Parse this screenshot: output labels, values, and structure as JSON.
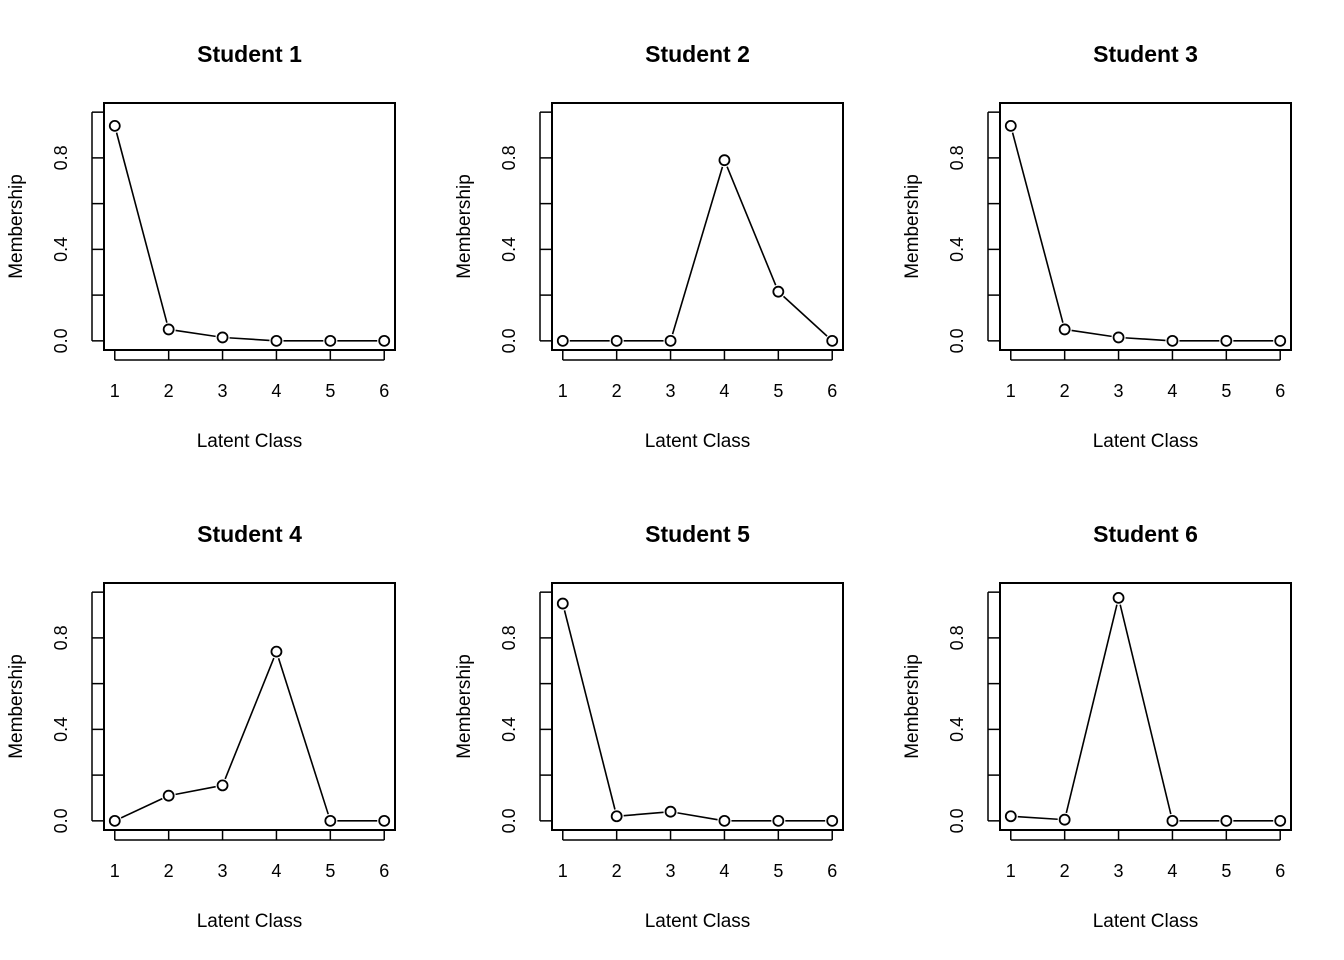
{
  "chart_data": [
    {
      "type": "line",
      "title": "Student 1",
      "xlabel": "Latent Class",
      "ylabel": "Membership",
      "x": [
        1,
        2,
        3,
        4,
        5,
        6
      ],
      "y": [
        0.94,
        0.05,
        0.015,
        0.0,
        0.0,
        0.0
      ],
      "xticks": [
        "1",
        "2",
        "3",
        "4",
        "5",
        "6"
      ],
      "yticks": [
        "0.0",
        "0.4",
        "0.8"
      ],
      "ylim": [
        -0.04,
        1.04
      ]
    },
    {
      "type": "line",
      "title": "Student 2",
      "xlabel": "Latent Class",
      "ylabel": "Membership",
      "x": [
        1,
        2,
        3,
        4,
        5,
        6
      ],
      "y": [
        0.0,
        0.0,
        0.0,
        0.79,
        0.215,
        0.0
      ],
      "xticks": [
        "1",
        "2",
        "3",
        "4",
        "5",
        "6"
      ],
      "yticks": [
        "0.0",
        "0.4",
        "0.8"
      ],
      "ylim": [
        -0.04,
        1.04
      ]
    },
    {
      "type": "line",
      "title": "Student 3",
      "xlabel": "Latent Class",
      "ylabel": "Membership",
      "x": [
        1,
        2,
        3,
        4,
        5,
        6
      ],
      "y": [
        0.94,
        0.05,
        0.015,
        0.0,
        0.0,
        0.0
      ],
      "xticks": [
        "1",
        "2",
        "3",
        "4",
        "5",
        "6"
      ],
      "yticks": [
        "0.0",
        "0.4",
        "0.8"
      ],
      "ylim": [
        -0.04,
        1.04
      ]
    },
    {
      "type": "line",
      "title": "Student 4",
      "xlabel": "Latent Class",
      "ylabel": "Membership",
      "x": [
        1,
        2,
        3,
        4,
        5,
        6
      ],
      "y": [
        0.0,
        0.11,
        0.155,
        0.74,
        0.0,
        0.0
      ],
      "xticks": [
        "1",
        "2",
        "3",
        "4",
        "5",
        "6"
      ],
      "yticks": [
        "0.0",
        "0.4",
        "0.8"
      ],
      "ylim": [
        -0.04,
        1.04
      ]
    },
    {
      "type": "line",
      "title": "Student 5",
      "xlabel": "Latent Class",
      "ylabel": "Membership",
      "x": [
        1,
        2,
        3,
        4,
        5,
        6
      ],
      "y": [
        0.95,
        0.02,
        0.04,
        0.0,
        0.0,
        0.0
      ],
      "xticks": [
        "1",
        "2",
        "3",
        "4",
        "5",
        "6"
      ],
      "yticks": [
        "0.0",
        "0.4",
        "0.8"
      ],
      "ylim": [
        -0.04,
        1.04
      ]
    },
    {
      "type": "line",
      "title": "Student 6",
      "xlabel": "Latent Class",
      "ylabel": "Membership",
      "x": [
        1,
        2,
        3,
        4,
        5,
        6
      ],
      "y": [
        0.02,
        0.005,
        0.975,
        0.0,
        0.0,
        0.0
      ],
      "xticks": [
        "1",
        "2",
        "3",
        "4",
        "5",
        "6"
      ],
      "yticks": [
        "0.0",
        "0.4",
        "0.8"
      ],
      "ylim": [
        -0.04,
        1.04
      ]
    }
  ]
}
